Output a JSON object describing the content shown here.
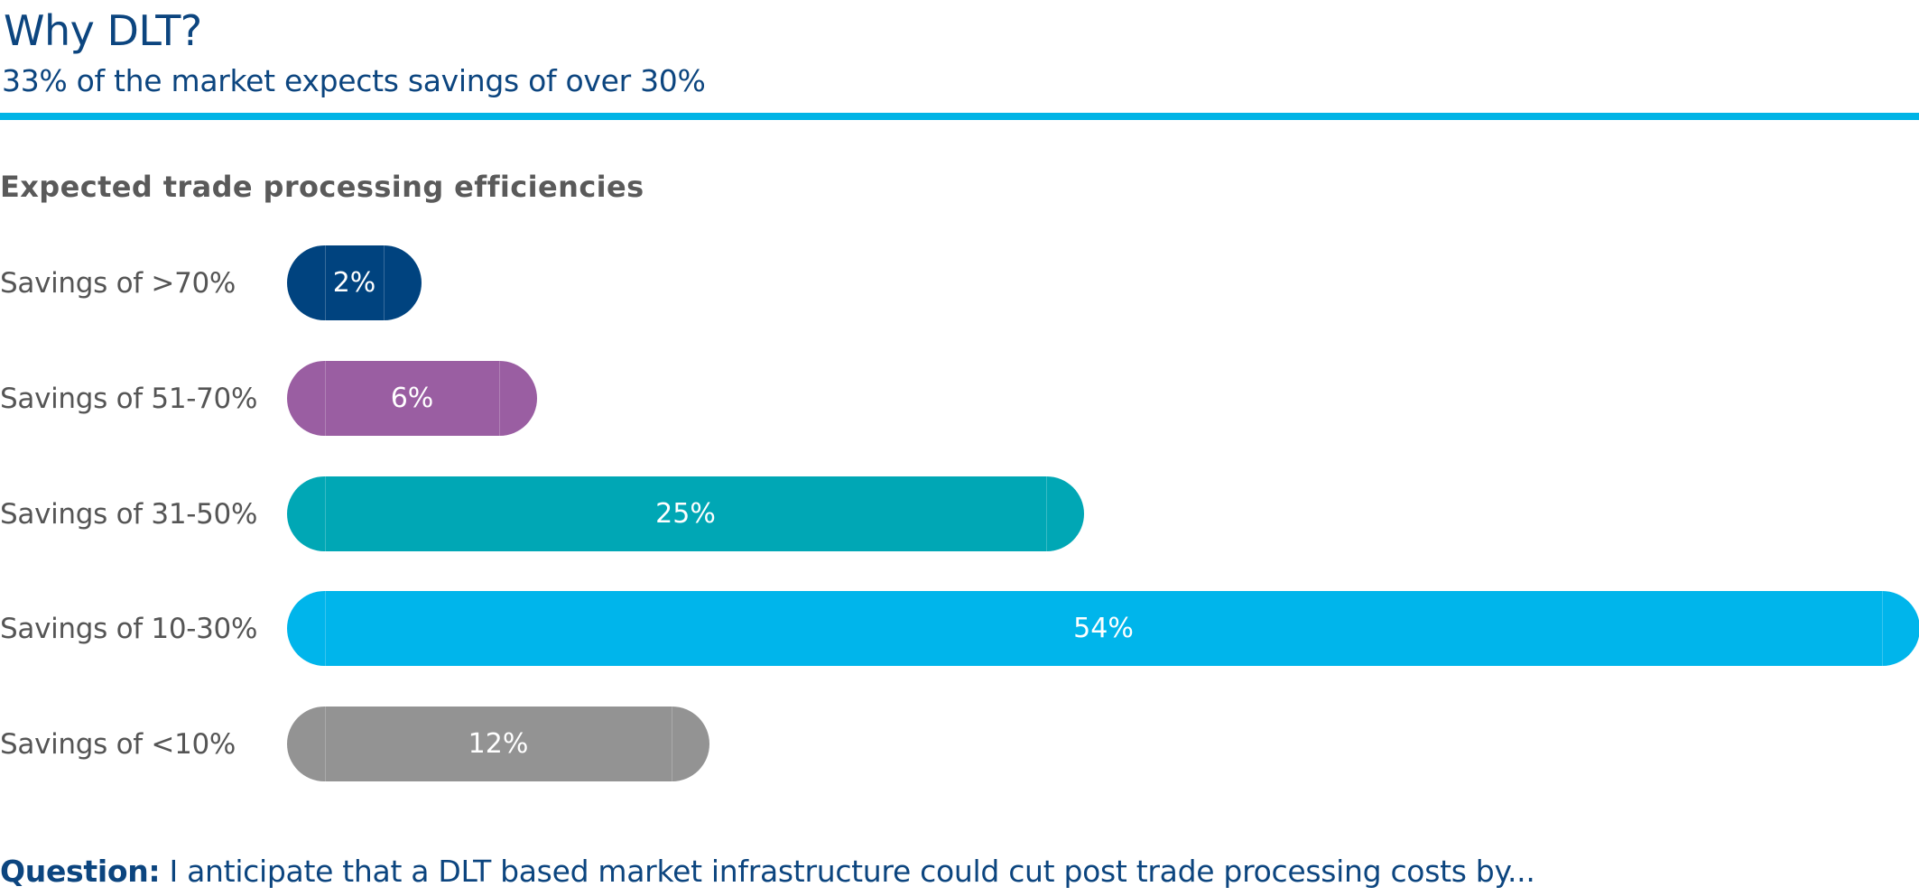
{
  "header": {
    "title": "Why DLT?",
    "subtitle": "33% of the market expects savings of over 30%",
    "rule_color": "#00b4e6"
  },
  "question": {
    "label": "Question:",
    "text": " I anticipate that a DLT based market infrastructure could cut post trade processing costs by..."
  },
  "chart_data": {
    "type": "bar",
    "orientation": "horizontal",
    "title": "Expected trade processing efficiencies",
    "xlabel": "",
    "ylabel": "",
    "grid": false,
    "legend": "none",
    "categories": [
      "Savings of >70%",
      "Savings of 51-70%",
      "Savings of 31-50%",
      "Savings of 10-30%",
      "Savings of <10%"
    ],
    "values": [
      2,
      6,
      25,
      54,
      12
    ],
    "value_labels": [
      "2%",
      "6%",
      "25%",
      "54%",
      "12%"
    ],
    "colors": [
      "#00437f",
      "#9a5ea2",
      "#00a7b5",
      "#00b5eb",
      "#939393"
    ],
    "unit": "%"
  }
}
